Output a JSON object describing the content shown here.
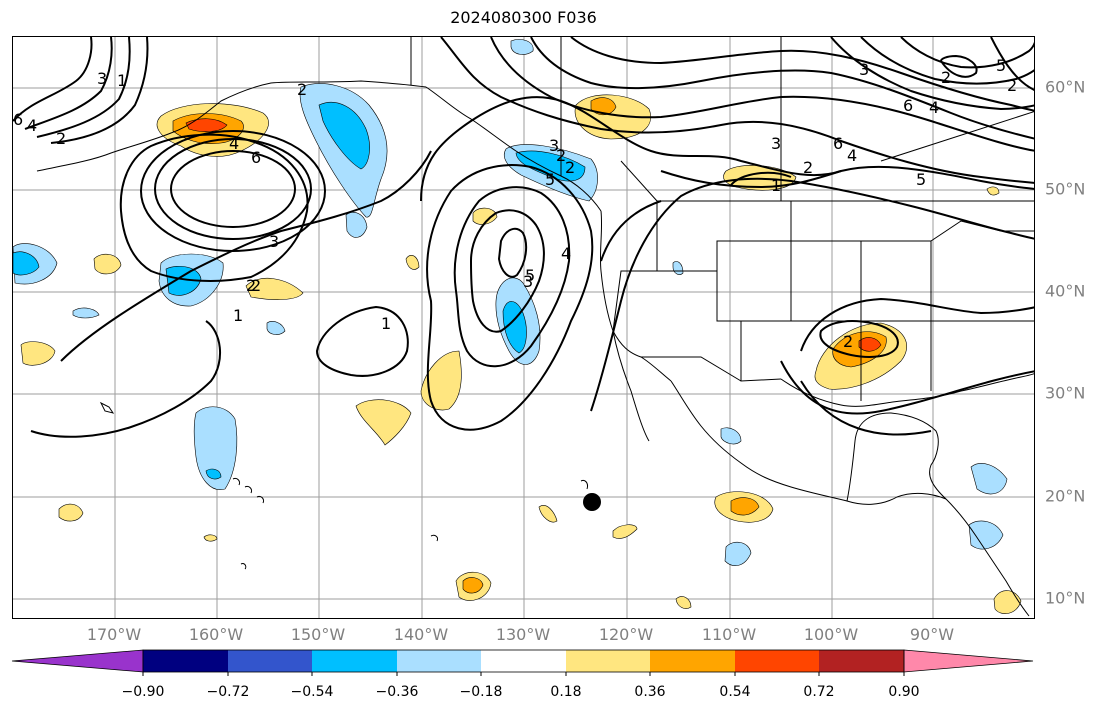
{
  "title": "2024080300 F036",
  "map": {
    "lon_labels": [
      "170°W",
      "160°W",
      "150°W",
      "140°W",
      "130°W",
      "120°W",
      "110°W",
      "100°W",
      "90°W"
    ],
    "lat_labels": [
      "60°N",
      "50°N",
      "40°N",
      "30°N",
      "20°N",
      "10°N"
    ],
    "contour_labels": [
      "6",
      "4",
      "2",
      "3",
      "1",
      "2",
      "6",
      "4",
      "2",
      "5",
      "3",
      "2",
      "1",
      "3",
      "2",
      "2",
      "5",
      "4",
      "3",
      "1",
      "6",
      "4",
      "2",
      "1",
      "3",
      "5",
      "6",
      "4",
      "2",
      "3",
      "5",
      "2",
      "2"
    ]
  },
  "colorbar": {
    "tick_labels": [
      "−0.90",
      "−0.72",
      "−0.54",
      "−0.36",
      "−0.18",
      "0.18",
      "0.36",
      "0.54",
      "0.72",
      "0.90"
    ],
    "colors": [
      "#9933cc",
      "#000080",
      "#3355cc",
      "#00bfff",
      "#aadfff",
      "#ffffff",
      "#ffe680",
      "#ffa500",
      "#ff4500",
      "#b22222",
      "#ff88aa"
    ]
  },
  "colors": {
    "grid": "#9e9e9e",
    "coast": "#000000",
    "contour": "#000000",
    "marker": "#000000"
  }
}
